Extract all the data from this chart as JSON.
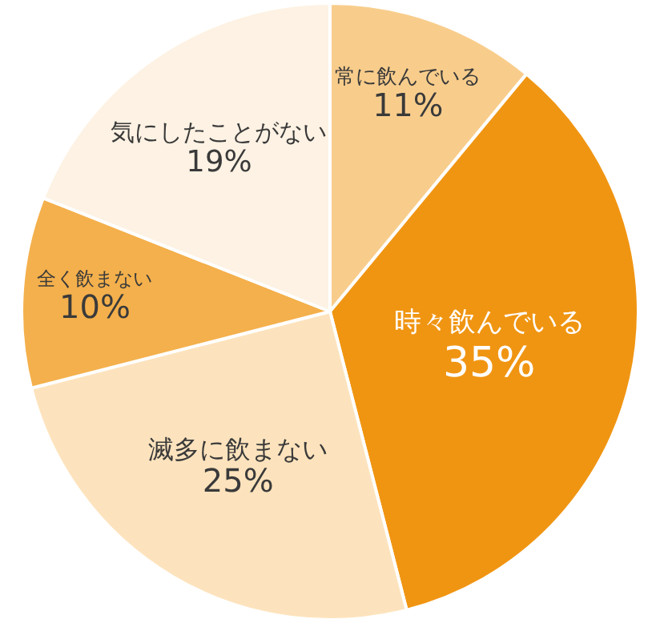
{
  "chart_data": {
    "type": "pie",
    "categories": [
      "常に飲んでいる",
      "時々飲んでいる",
      "滅多に飲まない",
      "全く飲まない",
      "気にしたことがない"
    ],
    "values": [
      11,
      35,
      25,
      10,
      19
    ],
    "value_labels": [
      "11%",
      "35%",
      "25%",
      "10%",
      "19%"
    ],
    "colors": [
      "#f8cd8c",
      "#f09512",
      "#fde3bd",
      "#f4b04c",
      "#fdf2e3"
    ]
  }
}
